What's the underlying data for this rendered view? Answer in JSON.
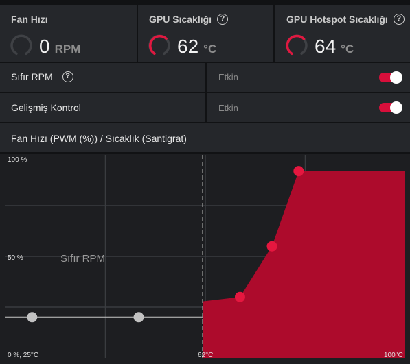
{
  "metrics": [
    {
      "title": "Fan Hızı",
      "value": "0",
      "unit": "RPM",
      "has_help": false,
      "gauge_active": false
    },
    {
      "title": "GPU Sıcaklığı",
      "value": "62",
      "unit": "°C",
      "has_help": true,
      "gauge_active": true
    },
    {
      "title": "GPU Hotspot Sıcaklığı",
      "value": "64",
      "unit": "°C",
      "has_help": true,
      "gauge_active": true
    }
  ],
  "settings": [
    {
      "label": "Sıfır RPM",
      "has_help": true,
      "state": "Etkin",
      "enabled": true
    },
    {
      "label": "Gelişmiş Kontrol",
      "has_help": false,
      "state": "Etkin",
      "enabled": true
    }
  ],
  "help_glyph": "?",
  "chart_data": {
    "type": "line",
    "title": "Fan Hızı (PWM (%)) / Sıcaklık (Santigrat)",
    "y_tick_labels": [
      "100 %",
      "50 %",
      "0 %, 25°C"
    ],
    "x_tick_labels": [
      "62°C",
      "100°C"
    ],
    "zero_rpm_label": "Sıfır RPM",
    "x_unit": "°C",
    "y_unit": "%",
    "xlim": [
      25,
      100
    ],
    "ylim": [
      0,
      100
    ],
    "current_temperature": 62,
    "zero_rpm_points": [
      {
        "x": 30,
        "y": 20
      },
      {
        "x": 50,
        "y": 20
      }
    ],
    "curve_points": [
      {
        "x": 69,
        "y": 30
      },
      {
        "x": 75,
        "y": 55
      },
      {
        "x": 80,
        "y": 92
      }
    ],
    "grid": true,
    "colors": {
      "fill": "#ad0b2c",
      "point": "#e5173f",
      "zero_line": "#c8c8c8",
      "zero_point": "#c2c2c2",
      "grid": "#3a3c40",
      "marker": "#9c9c9c"
    }
  },
  "colors": {
    "accent": "#d80f3b",
    "panel": "#25272b",
    "background": "#111214"
  }
}
